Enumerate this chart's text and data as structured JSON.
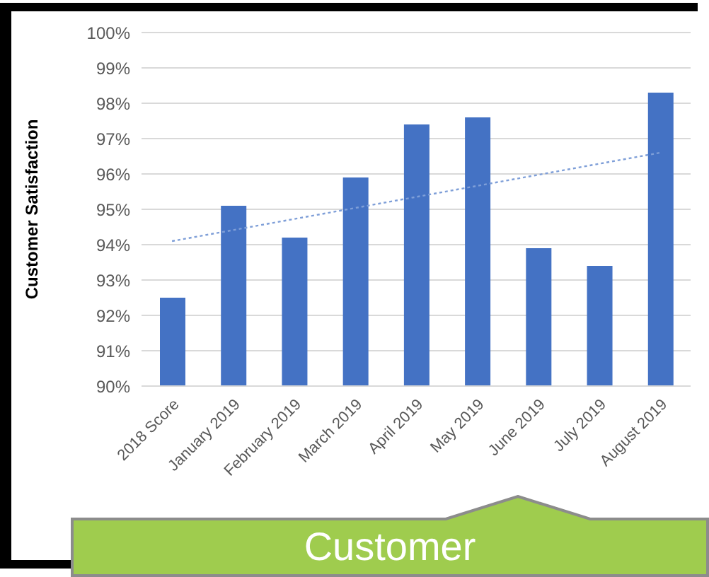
{
  "chart_data": {
    "type": "bar",
    "ylabel": "Customer Satisfaction",
    "categories": [
      "2018 Score",
      "January 2019",
      "February 2019",
      "March 2019",
      "April 2019",
      "May 2019",
      "June 2019",
      "July 2019",
      "August 2019"
    ],
    "series": [
      {
        "color": "#4472c4",
        "values": [
          92.5,
          95.1,
          94.2,
          95.9,
          97.4,
          97.6,
          93.9,
          93.4,
          98.3
        ]
      },
      {
        "type": "line",
        "color": "#7f9fd8",
        "line_style": "dotted",
        "marker": "none",
        "x": [
          "2018 Score",
          "August 2019"
        ],
        "values": [
          94.1,
          96.6
        ]
      }
    ],
    "ylim": [
      90,
      100
    ],
    "yticks": [
      {
        "value": 90,
        "label": "90%"
      },
      {
        "value": 91,
        "label": "91%"
      },
      {
        "value": 92,
        "label": "92%"
      },
      {
        "value": 93,
        "label": "93%"
      },
      {
        "value": 94,
        "label": "94%"
      },
      {
        "value": 95,
        "label": "95%"
      },
      {
        "value": 96,
        "label": "96%"
      },
      {
        "value": 97,
        "label": "97%"
      },
      {
        "value": 98,
        "label": "98%"
      },
      {
        "value": 99,
        "label": "99%"
      },
      {
        "value": 100,
        "label": "100%"
      }
    ],
    "grid": "y",
    "annotations": [
      "Customer"
    ]
  }
}
